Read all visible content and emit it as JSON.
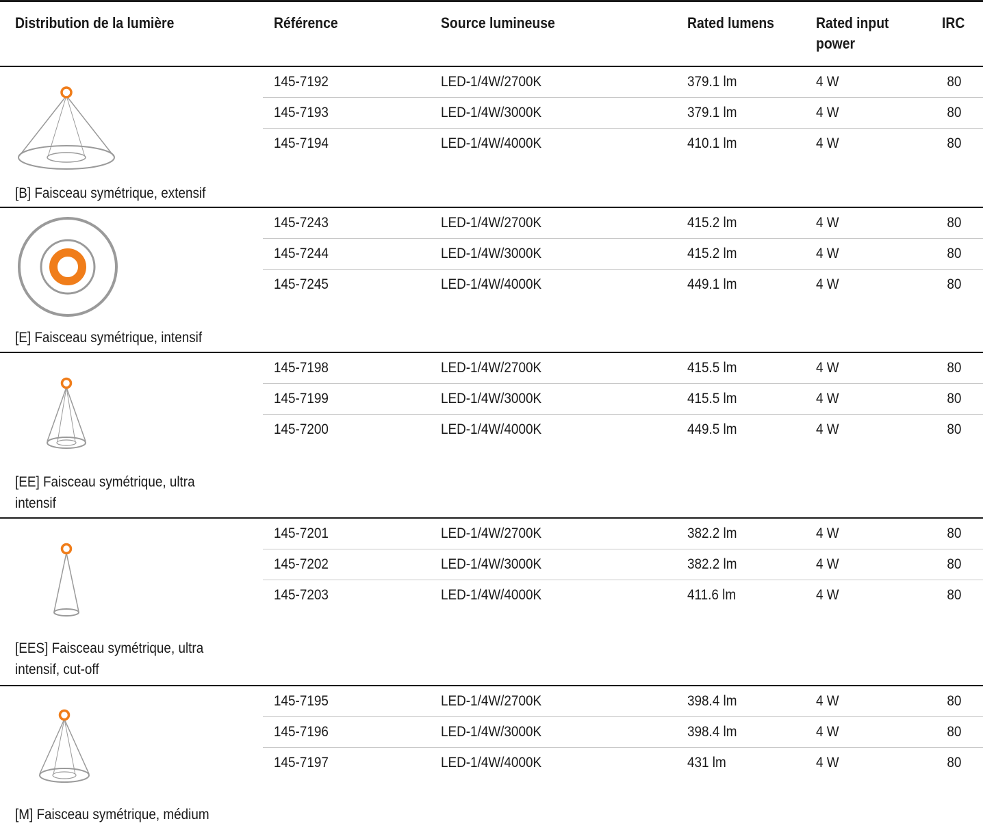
{
  "header": {
    "distribution": "Distribution de la lumière",
    "reference": "Référence",
    "source": "Source lumineuse",
    "lumens": "Rated lumens",
    "power_line1": "Rated input",
    "power_line2": "power",
    "irc": "IRC"
  },
  "colors": {
    "accent": "#f07d1a",
    "cone": "#9a9a9a",
    "rule": "#1a1a1a",
    "row_rule": "#c8c8c8"
  },
  "groups": [
    {
      "icon": "wide-beam-cone-icon",
      "caption_lines": [
        "[B] Faisceau symétrique, extensif"
      ],
      "rows": [
        {
          "ref": "145-7192",
          "source": "LED-1/4W/2700K",
          "lumens": "379.1 lm",
          "power": "4 W",
          "irc": "80"
        },
        {
          "ref": "145-7193",
          "source": "LED-1/4W/3000K",
          "lumens": "379.1 lm",
          "power": "4 W",
          "irc": "80"
        },
        {
          "ref": "145-7194",
          "source": "LED-1/4W/4000K",
          "lumens": "410.1 lm",
          "power": "4 W",
          "irc": "80"
        }
      ]
    },
    {
      "icon": "intensive-beam-rings-icon",
      "caption_lines": [
        "[E] Faisceau symétrique, intensif"
      ],
      "rows": [
        {
          "ref": "145-7243",
          "source": "LED-1/4W/2700K",
          "lumens": "415.2 lm",
          "power": "4 W",
          "irc": "80"
        },
        {
          "ref": "145-7244",
          "source": "LED-1/4W/3000K",
          "lumens": "415.2 lm",
          "power": "4 W",
          "irc": "80"
        },
        {
          "ref": "145-7245",
          "source": "LED-1/4W/4000K",
          "lumens": "449.1 lm",
          "power": "4 W",
          "irc": "80"
        }
      ]
    },
    {
      "icon": "narrow-beam-cone-icon",
      "caption_lines": [
        "[EE] Faisceau symétrique, ultra",
        "intensif"
      ],
      "rows": [
        {
          "ref": "145-7198",
          "source": "LED-1/4W/2700K",
          "lumens": "415.5 lm",
          "power": "4 W",
          "irc": "80"
        },
        {
          "ref": "145-7199",
          "source": "LED-1/4W/3000K",
          "lumens": "415.5 lm",
          "power": "4 W",
          "irc": "80"
        },
        {
          "ref": "145-7200",
          "source": "LED-1/4W/4000K",
          "lumens": "449.5 lm",
          "power": "4 W",
          "irc": "80"
        }
      ]
    },
    {
      "icon": "cutoff-beam-cone-icon",
      "caption_lines": [
        "[EES] Faisceau symétrique, ultra",
        "intensif, cut-off"
      ],
      "rows": [
        {
          "ref": "145-7201",
          "source": "LED-1/4W/2700K",
          "lumens": "382.2 lm",
          "power": "4 W",
          "irc": "80"
        },
        {
          "ref": "145-7202",
          "source": "LED-1/4W/3000K",
          "lumens": "382.2 lm",
          "power": "4 W",
          "irc": "80"
        },
        {
          "ref": "145-7203",
          "source": "LED-1/4W/4000K",
          "lumens": "411.6 lm",
          "power": "4 W",
          "irc": "80"
        }
      ]
    },
    {
      "icon": "medium-beam-cone-icon",
      "caption_lines": [
        "[M] Faisceau symétrique, médium"
      ],
      "rows": [
        {
          "ref": "145-7195",
          "source": "LED-1/4W/2700K",
          "lumens": "398.4 lm",
          "power": "4 W",
          "irc": "80"
        },
        {
          "ref": "145-7196",
          "source": "LED-1/4W/3000K",
          "lumens": "398.4 lm",
          "power": "4 W",
          "irc": "80"
        },
        {
          "ref": "145-7197",
          "source": "LED-1/4W/4000K",
          "lumens": "431 lm",
          "power": "4 W",
          "irc": "80"
        }
      ]
    }
  ]
}
